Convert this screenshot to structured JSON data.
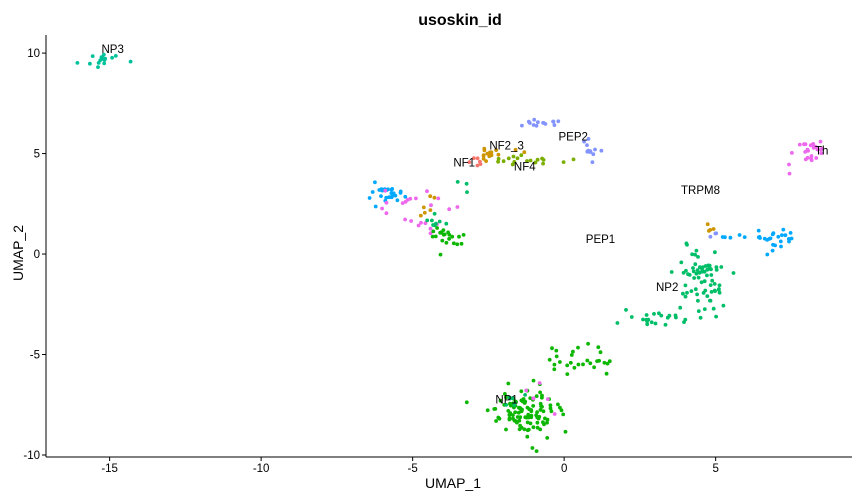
{
  "chart_data": {
    "type": "scatter",
    "title": "usoskin_id",
    "xlabel": "UMAP_1",
    "ylabel": "UMAP_2",
    "xlim": [
      -17.1,
      9.5
    ],
    "ylim": [
      -10.1,
      10.9
    ],
    "xticks": [
      -15,
      -10,
      -5,
      0,
      5
    ],
    "yticks": [
      -10,
      -5,
      0,
      5,
      10
    ],
    "grid": false,
    "legend": "none",
    "palette": {
      "NF1": "#F8766D",
      "NF2_3": "#CD9600",
      "NF4": "#7CAE00",
      "NP1": "#00BE67",
      "NP2": "#00BFC4",
      "NP3": "#00A9FF",
      "PEP1": "#C77CFF",
      "PEP2": "#FF61CC",
      "TRPM8": "#E68613",
      "Th": "#8494FF",
      "Th_pink": "#ED68ED",
      "NP2_green": "#0CB702",
      "NP3_teal": "#00C19A"
    },
    "cluster_labels": [
      {
        "text": "NP3",
        "x": -14.9,
        "y": 10.0
      },
      {
        "text": "NF2_3",
        "x": -1.9,
        "y": 5.2
      },
      {
        "text": "PEP2",
        "x": 0.3,
        "y": 5.65
      },
      {
        "text": "NF1",
        "x": -3.3,
        "y": 4.35
      },
      {
        "text": "NF4",
        "x": -1.3,
        "y": 4.15
      },
      {
        "text": "Th",
        "x": 8.5,
        "y": 4.95
      },
      {
        "text": "TRPM8",
        "x": 4.5,
        "y": 3.0
      },
      {
        "text": "PEP1",
        "x": 1.2,
        "y": 0.55
      },
      {
        "text": "NP2",
        "x": 3.4,
        "y": -1.85
      },
      {
        "text": "NP1",
        "x": -1.9,
        "y": -7.45
      }
    ],
    "clusters": [
      {
        "color": "#00C19A",
        "cx": -15.3,
        "cy": 9.7,
        "sx": 0.35,
        "sy": 0.2,
        "n": 16
      },
      {
        "color": "#8494FF",
        "cx": -0.6,
        "cy": 6.5,
        "sx": 0.3,
        "sy": 0.12,
        "n": 14
      },
      {
        "color": "#8494FF",
        "cx": 0.85,
        "cy": 5.2,
        "sx": 0.2,
        "sy": 0.25,
        "n": 12
      },
      {
        "color": "#CD9600",
        "cx": -2.5,
        "cy": 5.0,
        "sx": 0.5,
        "sy": 0.2,
        "n": 16
      },
      {
        "color": "#7CAE00",
        "cx": -1.2,
        "cy": 4.65,
        "sx": 0.6,
        "sy": 0.12,
        "n": 18
      },
      {
        "color": "#F8766D",
        "cx": -3.0,
        "cy": 4.7,
        "sx": 0.3,
        "sy": 0.2,
        "n": 6
      },
      {
        "color": "#00A9FF",
        "cx": -5.8,
        "cy": 3.2,
        "sx": 0.35,
        "sy": 0.3,
        "n": 26
      },
      {
        "color": "#ED68ED",
        "cx": -4.9,
        "cy": 2.6,
        "sx": 0.5,
        "sy": 0.3,
        "n": 14
      },
      {
        "color": "#CD9600",
        "cx": -4.4,
        "cy": 2.3,
        "sx": 0.25,
        "sy": 0.35,
        "n": 6
      },
      {
        "color": "#ED68ED",
        "cx": -4.6,
        "cy": 1.45,
        "sx": 0.3,
        "sy": 0.2,
        "n": 8
      },
      {
        "color": "#00BE67",
        "cx": -4.2,
        "cy": 1.5,
        "sx": 0.25,
        "sy": 0.3,
        "n": 8
      },
      {
        "color": "#0CB702",
        "cx": -3.9,
        "cy": 0.9,
        "sx": 0.3,
        "sy": 0.3,
        "n": 22
      },
      {
        "color": "#00BE67",
        "cx": -3.4,
        "cy": 3.4,
        "sx": 0.15,
        "sy": 0.3,
        "n": 3
      },
      {
        "color": "#ED68ED",
        "cx": 8.1,
        "cy": 5.0,
        "sx": 0.35,
        "sy": 0.35,
        "n": 26
      },
      {
        "color": "#CD9600",
        "cx": 4.8,
        "cy": 1.35,
        "sx": 0.1,
        "sy": 0.1,
        "n": 4
      },
      {
        "color": "#8494FF",
        "cx": 5.0,
        "cy": 0.9,
        "sx": 0.1,
        "sy": 0.15,
        "n": 3
      },
      {
        "color": "#00A9FF",
        "cx": 7.0,
        "cy": 0.75,
        "sx": 0.35,
        "sy": 0.25,
        "n": 22
      },
      {
        "color": "#00A9FF",
        "cx": 5.9,
        "cy": 0.85,
        "sx": 0.4,
        "sy": 0.05,
        "n": 7
      },
      {
        "color": "#00BE67",
        "cx": 4.5,
        "cy": -1.3,
        "sx": 0.4,
        "sy": 0.85,
        "n": 70
      },
      {
        "color": "#00BE67",
        "cx": 2.9,
        "cy": -3.25,
        "sx": 0.75,
        "sy": 0.2,
        "n": 22
      },
      {
        "color": "#0CB702",
        "cx": 0.5,
        "cy": -5.3,
        "sx": 0.55,
        "sy": 0.35,
        "n": 28
      },
      {
        "color": "#0CB702",
        "cx": -1.3,
        "cy": -7.8,
        "sx": 0.55,
        "sy": 0.6,
        "n": 110
      },
      {
        "color": "#ED68ED",
        "cx": -0.9,
        "cy": -7.0,
        "sx": 0.4,
        "sy": 0.3,
        "n": 6
      },
      {
        "color": "#00BE67",
        "cx": -1.7,
        "cy": -7.3,
        "sx": 0.3,
        "sy": 0.2,
        "n": 6
      }
    ]
  }
}
